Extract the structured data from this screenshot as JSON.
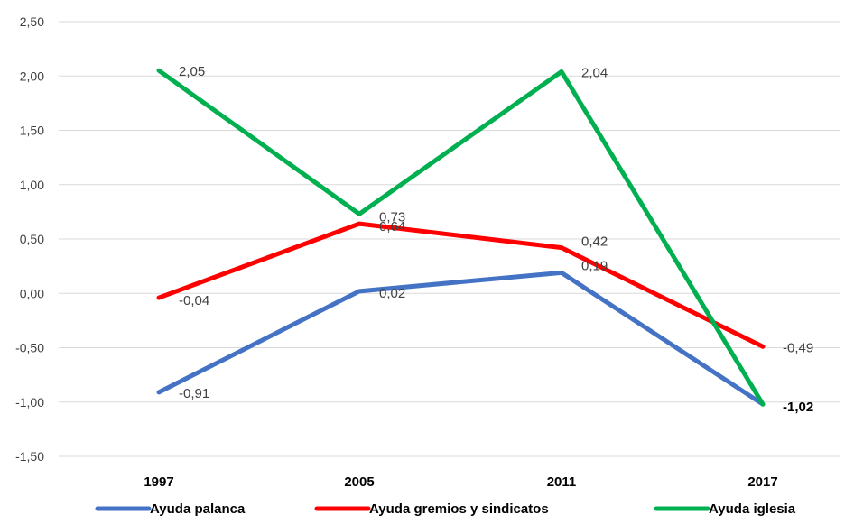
{
  "chart_data": {
    "type": "line",
    "title": "",
    "xlabel": "",
    "ylabel": "",
    "categories": [
      "1997",
      "2005",
      "2011",
      "2017"
    ],
    "ylim": [
      -1.5,
      2.5
    ],
    "yticks": [
      -1.5,
      -1.0,
      -0.5,
      0.0,
      0.5,
      1.0,
      1.5,
      2.0,
      2.5
    ],
    "ytick_labels": [
      "-1,50",
      "-1,00",
      "-0,50",
      "0,00",
      "0,50",
      "1,00",
      "1,50",
      "2,00",
      "2,50"
    ],
    "grid": "horizontal",
    "legend_position": "bottom",
    "series": [
      {
        "name": "Ayuda palanca",
        "color": "#4472C4",
        "values": [
          -0.91,
          0.02,
          0.19,
          -1.02
        ],
        "labels": [
          "-0,91",
          "0,02",
          "0,19",
          ""
        ]
      },
      {
        "name": "Ayuda gremios y sindicatos",
        "color": "#FF0000",
        "values": [
          -0.04,
          0.64,
          0.42,
          -0.49
        ],
        "labels": [
          "-0,04",
          "0,64",
          "0,42",
          "-0,49"
        ]
      },
      {
        "name": "Ayuda iglesia",
        "color": "#00B050",
        "values": [
          2.05,
          0.73,
          2.04,
          -1.02
        ],
        "labels": [
          "2,05",
          "0,73",
          "2,04",
          "-1,02"
        ]
      }
    ]
  }
}
